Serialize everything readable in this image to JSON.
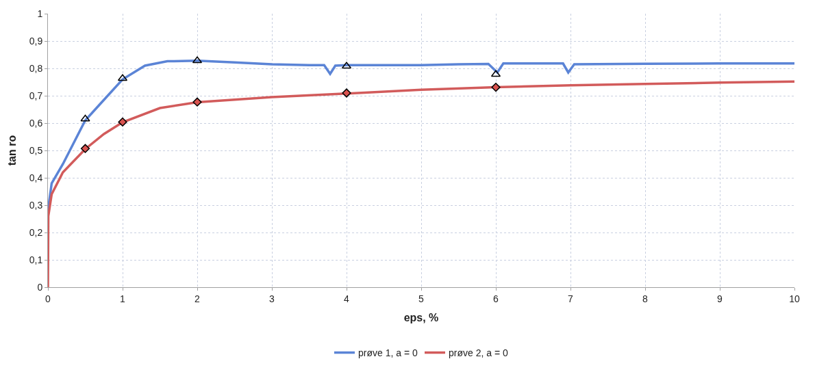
{
  "chart_data": {
    "type": "line",
    "xlabel": "eps, %",
    "ylabel": "tan ro",
    "xlim": [
      0,
      10
    ],
    "xticks": [
      0,
      1,
      2,
      3,
      4,
      5,
      6,
      7,
      8,
      9,
      10
    ],
    "ylim": [
      0,
      1
    ],
    "yticks": [
      0,
      {
        "value": 0.1,
        "label": "0,1"
      },
      {
        "value": 0.2,
        "label": "0,2"
      },
      {
        "value": 0.3,
        "label": "0,3"
      },
      {
        "value": 0.4,
        "label": "0,4"
      },
      {
        "value": 0.5,
        "label": "0,5"
      },
      {
        "value": 0.6,
        "label": "0,6"
      },
      {
        "value": 0.7,
        "label": "0,7"
      },
      {
        "value": 0.8,
        "label": "0,8"
      },
      {
        "value": 0.9,
        "label": "0,9"
      },
      1
    ],
    "grid": true,
    "legend": "bottom",
    "line_style": "solid",
    "series": [
      {
        "name": "prøve 1, a = 0",
        "color": "#5b84d6",
        "marker": "none",
        "x": [
          0,
          0.05,
          0.2,
          0.5,
          0.7,
          1,
          1.3,
          1.6,
          2,
          2.5,
          3,
          3.5,
          3.7,
          3.78,
          3.85,
          4,
          5,
          5.5,
          5.9,
          6.02,
          6.1,
          6.5,
          6.9,
          6.97,
          7.05,
          8,
          9,
          10
        ],
        "values": [
          0.28,
          0.38,
          0.45,
          0.61,
          0.67,
          0.76,
          0.81,
          0.826,
          0.828,
          0.822,
          0.815,
          0.812,
          0.812,
          0.78,
          0.81,
          0.812,
          0.812,
          0.815,
          0.816,
          0.785,
          0.818,
          0.818,
          0.818,
          0.785,
          0.815,
          0.817,
          0.818,
          0.818
        ]
      },
      {
        "name": "prøve 2, a = 0",
        "color": "#d25b5b",
        "marker": "none",
        "x": [
          0,
          0.005,
          0.05,
          0.2,
          0.5,
          0.75,
          1,
          1.5,
          2,
          3,
          4,
          5,
          6,
          7,
          8,
          9,
          10
        ],
        "values": [
          0,
          0.26,
          0.34,
          0.42,
          0.505,
          0.56,
          0.603,
          0.655,
          0.676,
          0.695,
          0.708,
          0.722,
          0.731,
          0.738,
          0.743,
          0.748,
          0.752
        ]
      },
      {
        "type": "scatter",
        "color": "#000000",
        "marker": "triangle",
        "x": [
          0.5,
          1,
          2,
          4,
          6
        ],
        "values": [
          0.615,
          0.763,
          0.828,
          0.808,
          0.778
        ]
      },
      {
        "type": "scatter",
        "color": "#d9534f",
        "marker": "diamond",
        "x": [
          0.5,
          1,
          2,
          4,
          6
        ],
        "values": [
          0.507,
          0.604,
          0.677,
          0.71,
          0.731
        ]
      }
    ]
  }
}
